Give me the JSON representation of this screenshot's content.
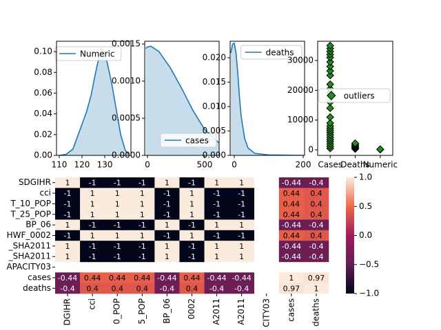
{
  "chart_data": [
    {
      "type": "kde",
      "x": [
        110,
        113,
        116,
        118,
        120,
        122,
        124,
        126,
        127.5,
        128.5,
        129.5,
        131,
        133,
        135,
        137,
        139,
        140.5
      ],
      "series": [
        {
          "name": "Numeric",
          "color": "#1f77b4",
          "values": [
            0,
            0.001,
            0.006,
            0.018,
            0.03,
            0.042,
            0.058,
            0.08,
            0.095,
            0.103,
            0.1,
            0.09,
            0.07,
            0.045,
            0.02,
            0.005,
            0.001
          ]
        }
      ],
      "xlim": [
        108.8,
        141.5
      ],
      "xticks": [
        110,
        120,
        130
      ],
      "ylim": [
        0,
        0.11
      ],
      "yticks": [
        {
          "value": 0,
          "label": "0.00"
        },
        {
          "value": 0.02,
          "label": "0.02"
        },
        {
          "value": 0.04,
          "label": "0.04"
        },
        {
          "value": 0.06,
          "label": "0.06"
        },
        {
          "value": 0.08,
          "label": "0.08"
        },
        {
          "value": 0.1,
          "label": "0.10"
        }
      ],
      "legend": "upper left"
    },
    {
      "type": "kde",
      "x": [
        -15,
        0,
        30,
        100,
        200,
        300,
        400,
        500,
        600,
        627
      ],
      "series": [
        {
          "name": "cases",
          "color": "#1f77b4",
          "values": [
            0.00144,
            0.00146,
            0.00147,
            0.0014,
            0.00118,
            0.0009,
            0.0006,
            0.00035,
            0.0002,
            0.00017
          ]
        }
      ],
      "xlim": [
        -24,
        627
      ],
      "xticks": [
        0,
        500
      ],
      "ylim": [
        0,
        0.001537
      ],
      "yticks": [
        {
          "value": 0,
          "label": "0.0000"
        },
        {
          "value": 0.0005,
          "label": "0.0005"
        },
        {
          "value": 0.001,
          "label": "0.0010"
        },
        {
          "value": 0.0015,
          "label": "0.0015"
        }
      ],
      "legend": "lower right"
    },
    {
      "type": "kde",
      "x": [
        -10,
        -5,
        0,
        5,
        10,
        15,
        20,
        30,
        40,
        60,
        100,
        200
      ],
      "series": [
        {
          "name": "deaths",
          "color": "#1f77b4",
          "values": [
            0.021,
            0.0228,
            0.023,
            0.021,
            0.017,
            0.012,
            0.008,
            0.0035,
            0.0015,
            0.0004,
            0.0001,
            0
          ]
        }
      ],
      "xlim": [
        -12,
        204
      ],
      "xticks": [
        0,
        200
      ],
      "ylim": [
        0,
        0.02338
      ],
      "yticks": [
        {
          "value": 0,
          "label": "0.000"
        },
        {
          "value": 0.005,
          "label": "0.005"
        },
        {
          "value": 0.01,
          "label": "0.010"
        },
        {
          "value": 0.015,
          "label": "0.015"
        },
        {
          "value": 0.02,
          "label": "0.020"
        }
      ],
      "legend": "upper right"
    },
    {
      "type": "strip",
      "categories": [
        "Cases",
        "Deaths",
        "Numeric"
      ],
      "series": [
        {
          "name": "outliers",
          "color": "#228b22",
          "values": [
            [
              500,
              1200,
              2000,
              2800,
              3500,
              4200,
              5000,
              5800,
              6500,
              7200,
              8000,
              9000,
              11000,
              14000,
              16000,
              19000,
              20500,
              22000,
              25000,
              26500,
              28000,
              29500,
              31000,
              32000,
              33000,
              34000,
              35000
            ],
            [
              300,
              600,
              900,
              1200,
              1500,
              1900,
              2200
            ],
            [
              100,
              200
            ]
          ]
        }
      ],
      "ylim": [
        -1850,
        36460
      ],
      "yticks": [
        0,
        10000,
        20000,
        30000
      ],
      "legend": "center right"
    },
    {
      "type": "heatmap",
      "rows": [
        "SDGIHR",
        "cci",
        "T_10_POP",
        "T_25_POP",
        "BP_06",
        "HWF_0002",
        "_SHA2011",
        "_SHA2011",
        "APACITY03",
        "cases",
        "deaths"
      ],
      "columns": [
        "DGIHR",
        "cci",
        "0_POP",
        "5_POP",
        "BP_06",
        "0002",
        "A2011",
        "A2011",
        "CITY03",
        "cases",
        "deaths"
      ],
      "values": [
        [
          1,
          -1,
          -1,
          -1,
          1,
          -1,
          1,
          1,
          null,
          -0.44,
          -0.4
        ],
        [
          -1,
          1,
          1,
          1,
          -1,
          1,
          -1,
          -1,
          null,
          0.44,
          0.4
        ],
        [
          -1,
          1,
          1,
          1,
          -1,
          1,
          -1,
          -1,
          null,
          0.44,
          0.4
        ],
        [
          -1,
          1,
          1,
          1,
          -1,
          1,
          -1,
          -1,
          null,
          0.44,
          0.4
        ],
        [
          1,
          -1,
          -1,
          -1,
          1,
          -1,
          1,
          1,
          null,
          -0.44,
          -0.4
        ],
        [
          -1,
          1,
          1,
          1,
          -1,
          1,
          -1,
          -1,
          null,
          0.44,
          0.4
        ],
        [
          1,
          -1,
          -1,
          -1,
          1,
          -1,
          1,
          1,
          null,
          -0.44,
          -0.4
        ],
        [
          1,
          -1,
          -1,
          -1,
          1,
          -1,
          1,
          1,
          null,
          -0.44,
          -0.4
        ],
        [
          null,
          null,
          null,
          null,
          null,
          null,
          null,
          null,
          null,
          null,
          null
        ],
        [
          -0.44,
          0.44,
          0.44,
          0.44,
          -0.44,
          0.44,
          -0.44,
          -0.44,
          null,
          1,
          0.97
        ],
        [
          -0.4,
          0.4,
          0.4,
          0.4,
          -0.4,
          0.4,
          -0.4,
          -0.4,
          null,
          0.97,
          1
        ]
      ],
      "colorbar_lim": [
        -1,
        1
      ],
      "colorbar_ticks": [
        {
          "value": -1,
          "label": "−1.0"
        },
        {
          "value": -0.5,
          "label": "−0.5"
        },
        {
          "value": 0,
          "label": "0.0"
        },
        {
          "value": 0.5,
          "label": "0.5"
        },
        {
          "value": 1,
          "label": "1.0"
        }
      ]
    }
  ]
}
